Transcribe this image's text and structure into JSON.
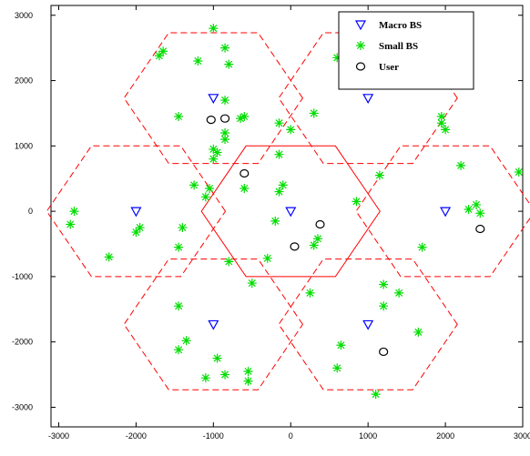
{
  "chart_data": {
    "type": "scatter",
    "title": "",
    "xlabel": "",
    "ylabel": "",
    "xlim": [
      -3100,
      3000
    ],
    "ylim": [
      -3300,
      3150
    ],
    "xticks": [
      -3000,
      -2000,
      -1000,
      0,
      1000,
      2000,
      3000
    ],
    "yticks": [
      -3000,
      -2000,
      -1000,
      0,
      1000,
      2000,
      3000
    ],
    "grid": false,
    "legend_position": "top-right",
    "hexagon_radius": 1155,
    "cells": [
      {
        "center": [
          0,
          0
        ],
        "style": "solid"
      },
      {
        "center": [
          -1000,
          1732
        ],
        "style": "dashed"
      },
      {
        "center": [
          1000,
          1732
        ],
        "style": "dashed"
      },
      {
        "center": [
          -2000,
          0
        ],
        "style": "dashed"
      },
      {
        "center": [
          2000,
          0
        ],
        "style": "dashed"
      },
      {
        "center": [
          -1000,
          -1732
        ],
        "style": "dashed"
      },
      {
        "center": [
          1000,
          -1732
        ],
        "style": "dashed"
      }
    ],
    "series": [
      {
        "name": "Macro BS",
        "marker": "triangle-down",
        "color": "#0000ff",
        "points": [
          [
            0,
            0
          ],
          [
            -1000,
            1732
          ],
          [
            1000,
            1732
          ],
          [
            -2000,
            0
          ],
          [
            2000,
            0
          ],
          [
            -1000,
            -1732
          ],
          [
            1000,
            -1732
          ]
        ]
      },
      {
        "name": "Small BS",
        "marker": "asterisk",
        "color": "#00dd00",
        "points": [
          [
            -1000,
            2800
          ],
          [
            -850,
            2500
          ],
          [
            -1650,
            2450
          ],
          [
            -1700,
            2380
          ],
          [
            -1200,
            2300
          ],
          [
            -800,
            2250
          ],
          [
            -850,
            1700
          ],
          [
            -1450,
            1450
          ],
          [
            -600,
            1450
          ],
          [
            -650,
            1420
          ],
          [
            -850,
            1200
          ],
          [
            -850,
            1100
          ],
          [
            -1000,
            950
          ],
          [
            -950,
            900
          ],
          [
            -1000,
            800
          ],
          [
            -150,
            1350
          ],
          [
            0,
            1250
          ],
          [
            -150,
            870
          ],
          [
            300,
            1500
          ],
          [
            600,
            2350
          ],
          [
            1050,
            2500
          ],
          [
            1100,
            2380
          ],
          [
            1950,
            1450
          ],
          [
            1950,
            1350
          ],
          [
            2000,
            1250
          ],
          [
            2200,
            700
          ],
          [
            2950,
            600
          ],
          [
            -2800,
            0
          ],
          [
            -2850,
            -200
          ],
          [
            -1950,
            -250
          ],
          [
            -2000,
            -320
          ],
          [
            -2350,
            -700
          ],
          [
            -1400,
            -250
          ],
          [
            -1450,
            -550
          ],
          [
            -1250,
            400
          ],
          [
            -1050,
            350
          ],
          [
            -1100,
            220
          ],
          [
            -600,
            350
          ],
          [
            -100,
            400
          ],
          [
            -150,
            300
          ],
          [
            -200,
            -150
          ],
          [
            350,
            -420
          ],
          [
            300,
            -520
          ],
          [
            -300,
            -720
          ],
          [
            850,
            150
          ],
          [
            1150,
            550
          ],
          [
            2400,
            100
          ],
          [
            2300,
            30
          ],
          [
            2450,
            -30
          ],
          [
            1700,
            -550
          ],
          [
            -1450,
            -1450
          ],
          [
            -1350,
            -1980
          ],
          [
            -1450,
            -2120
          ],
          [
            -950,
            -2250
          ],
          [
            -850,
            -2500
          ],
          [
            -1100,
            -2550
          ],
          [
            -550,
            -2450
          ],
          [
            -550,
            -2600
          ],
          [
            -800,
            -770
          ],
          [
            -500,
            -1100
          ],
          [
            250,
            -1250
          ],
          [
            1200,
            -1120
          ],
          [
            1400,
            -1250
          ],
          [
            1200,
            -1450
          ],
          [
            1650,
            -1850
          ],
          [
            650,
            -2050
          ],
          [
            600,
            -2400
          ],
          [
            1100,
            -2800
          ]
        ]
      },
      {
        "name": "User",
        "marker": "circle",
        "color": "#000000",
        "points": [
          [
            -1030,
            1400
          ],
          [
            -850,
            1420
          ],
          [
            -600,
            580
          ],
          [
            380,
            -200
          ],
          [
            50,
            -540
          ],
          [
            2450,
            -270
          ],
          [
            1200,
            -2150
          ]
        ]
      }
    ]
  }
}
